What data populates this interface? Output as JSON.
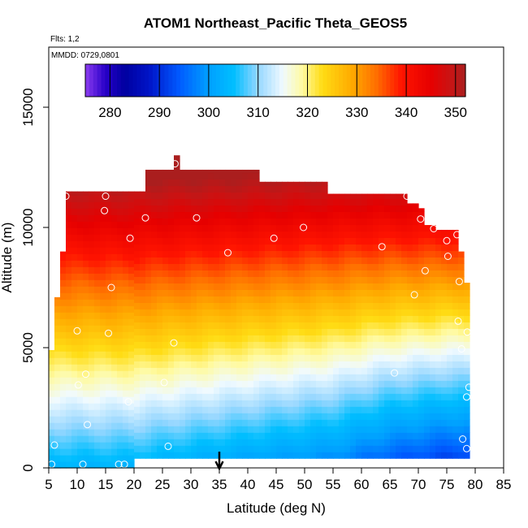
{
  "chart_data": {
    "type": "heatmap",
    "title": "ATOM1 Northeast_Pacific Theta_GEOS5",
    "flights_label": "Flts: 1,2",
    "date_label": "MMDD: 0729,0801",
    "xlabel": "Latitude (deg N)",
    "ylabel": "Altitude (m)",
    "xlim": [
      5,
      85
    ],
    "ylim": [
      0,
      17500
    ],
    "x_ticks": [
      5,
      10,
      15,
      20,
      25,
      30,
      35,
      40,
      45,
      50,
      55,
      60,
      65,
      70,
      75,
      80,
      85
    ],
    "y_ticks": [
      0,
      5000,
      10000,
      15000
    ],
    "colorbar": {
      "range": [
        275,
        352
      ],
      "ticks": [
        280,
        290,
        300,
        310,
        320,
        330,
        340,
        350
      ]
    },
    "field_extent": {
      "lat_min": 5,
      "lat_max": 79,
      "surface_theta": 303,
      "top_theta": 352,
      "warm_fold_lat": 60
    },
    "marker_lat": 35,
    "sample_points": [
      [
        5.5,
        150
      ],
      [
        6,
        950
      ],
      [
        11,
        150
      ],
      [
        17.3,
        150
      ],
      [
        18.3,
        150
      ],
      [
        26,
        900
      ],
      [
        11.8,
        1800
      ],
      [
        19,
        2750
      ],
      [
        10.2,
        3450
      ],
      [
        11.5,
        3900
      ],
      [
        25.3,
        3550
      ],
      [
        10,
        5700
      ],
      [
        15.5,
        5600
      ],
      [
        27,
        5200
      ],
      [
        16,
        7500
      ],
      [
        8,
        11300
      ],
      [
        15,
        11300
      ],
      [
        14.8,
        10700
      ],
      [
        22,
        10400
      ],
      [
        31,
        10400
      ],
      [
        19.3,
        9550
      ],
      [
        36.5,
        8950
      ],
      [
        44.6,
        9550
      ],
      [
        49.8,
        10000
      ],
      [
        27.2,
        12650
      ],
      [
        63.6,
        9200
      ],
      [
        68,
        11300
      ],
      [
        70.4,
        10350
      ],
      [
        72.7,
        9950
      ],
      [
        75,
        9450
      ],
      [
        76.8,
        9700
      ],
      [
        75.2,
        8800
      ],
      [
        71.2,
        8200
      ],
      [
        69.3,
        7200
      ],
      [
        77.2,
        7750
      ],
      [
        77,
        6100
      ],
      [
        78.6,
        5650
      ],
      [
        77.6,
        4950
      ],
      [
        65.8,
        3950
      ],
      [
        78.9,
        3350
      ],
      [
        78.5,
        2950
      ],
      [
        77.8,
        1200
      ],
      [
        78.5,
        800
      ]
    ]
  }
}
